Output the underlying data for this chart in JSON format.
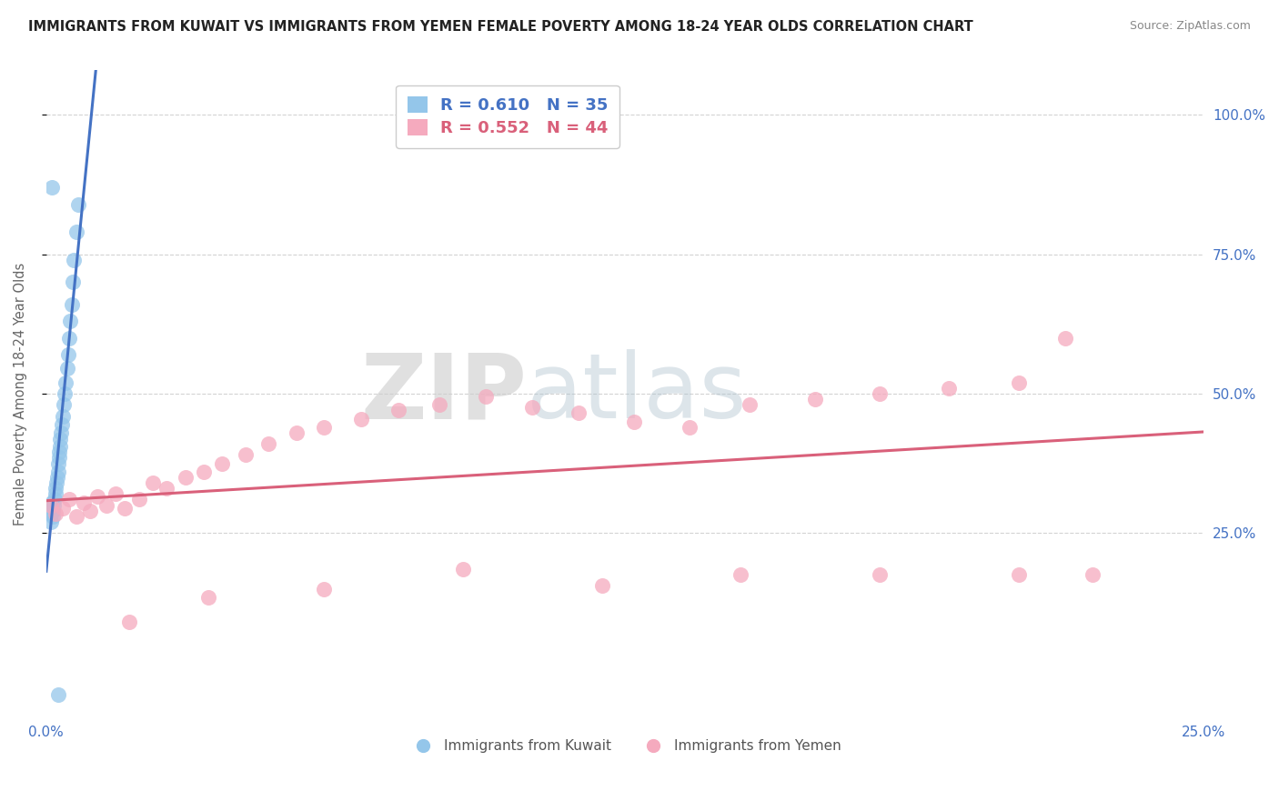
{
  "title": "IMMIGRANTS FROM KUWAIT VS IMMIGRANTS FROM YEMEN FEMALE POVERTY AMONG 18-24 YEAR OLDS CORRELATION CHART",
  "source": "Source: ZipAtlas.com",
  "ylabel": "Female Poverty Among 18-24 Year Olds",
  "legend_labels": [
    "Immigrants from Kuwait",
    "Immigrants from Yemen"
  ],
  "R_kuwait": 0.61,
  "N_kuwait": 35,
  "R_yemen": 0.552,
  "N_yemen": 44,
  "color_kuwait": "#94C6EA",
  "color_yemen": "#F5AABE",
  "color_kuwait_line": "#4472C4",
  "color_yemen_line": "#D9607A",
  "xlim": [
    0.0,
    0.25
  ],
  "ylim": [
    -0.08,
    1.08
  ],
  "yticks_right": [
    0.25,
    0.5,
    0.75,
    1.0
  ],
  "xticks": [
    0.0,
    0.25
  ],
  "watermark_zip": "ZIP",
  "watermark_atlas": "atlas",
  "kuwait_x": [
    0.001,
    0.001,
    0.0012,
    0.0013,
    0.0015,
    0.0015,
    0.0016,
    0.0018,
    0.002,
    0.002,
    0.0022,
    0.0023,
    0.0025,
    0.0025,
    0.0027,
    0.0028,
    0.003,
    0.003,
    0.0032,
    0.0033,
    0.0035,
    0.0038,
    0.004,
    0.0042,
    0.0045,
    0.0048,
    0.005,
    0.0052,
    0.0055,
    0.0058,
    0.006,
    0.0065,
    0.007,
    0.0012,
    0.0025
  ],
  "kuwait_y": [
    0.27,
    0.285,
    0.295,
    0.305,
    0.28,
    0.29,
    0.3,
    0.31,
    0.32,
    0.33,
    0.34,
    0.35,
    0.36,
    0.375,
    0.385,
    0.395,
    0.405,
    0.418,
    0.43,
    0.445,
    0.46,
    0.48,
    0.5,
    0.52,
    0.545,
    0.57,
    0.6,
    0.63,
    0.66,
    0.7,
    0.74,
    0.79,
    0.84,
    0.87,
    -0.04
  ],
  "yemen_x": [
    0.001,
    0.002,
    0.0035,
    0.005,
    0.0065,
    0.008,
    0.0095,
    0.011,
    0.013,
    0.015,
    0.017,
    0.02,
    0.023,
    0.026,
    0.03,
    0.034,
    0.038,
    0.043,
    0.048,
    0.054,
    0.06,
    0.068,
    0.076,
    0.085,
    0.095,
    0.105,
    0.115,
    0.127,
    0.139,
    0.152,
    0.166,
    0.18,
    0.195,
    0.21,
    0.22,
    0.226,
    0.21,
    0.18,
    0.15,
    0.12,
    0.09,
    0.06,
    0.035,
    0.018
  ],
  "yemen_y": [
    0.3,
    0.285,
    0.295,
    0.31,
    0.28,
    0.305,
    0.29,
    0.315,
    0.3,
    0.32,
    0.295,
    0.31,
    0.34,
    0.33,
    0.35,
    0.36,
    0.375,
    0.39,
    0.41,
    0.43,
    0.44,
    0.455,
    0.47,
    0.48,
    0.495,
    0.475,
    0.465,
    0.45,
    0.44,
    0.48,
    0.49,
    0.5,
    0.51,
    0.52,
    0.6,
    0.175,
    0.175,
    0.175,
    0.175,
    0.155,
    0.185,
    0.15,
    0.135,
    0.09
  ]
}
